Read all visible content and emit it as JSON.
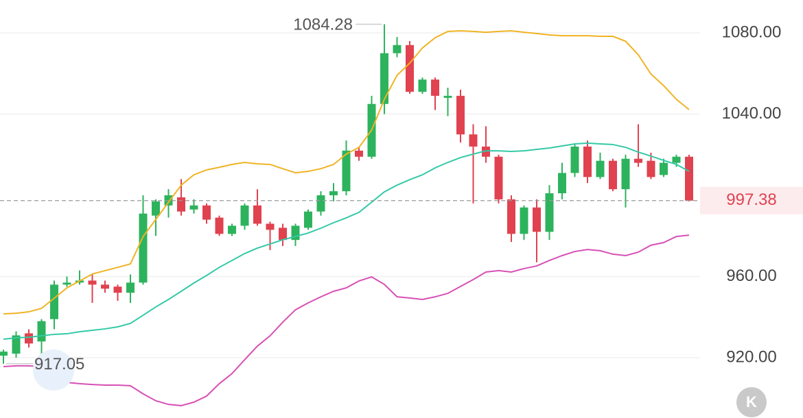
{
  "chart_data": {
    "type": "candlestick",
    "up_color": "#2db35d",
    "down_color": "#e0424f",
    "open": [
      921,
      922,
      932,
      928,
      939,
      956,
      957,
      958,
      956,
      955,
      952,
      957,
      990,
      995,
      999,
      993,
      995,
      989,
      981,
      985,
      995,
      986,
      984,
      978,
      984,
      992,
      1000,
      1002,
      1022,
      1019,
      1045,
      1070,
      1074,
      1051,
      1057,
      1048,
      1049,
      1030,
      1024,
      1019,
      998,
      981,
      994,
      982,
      1001,
      1011,
      1024,
      1009,
      1017,
      1003,
      1018,
      1017,
      1010,
      1016,
      1019
    ],
    "high": [
      924,
      933,
      934,
      939,
      958,
      960,
      963,
      961,
      958,
      956,
      961,
      1000,
      998,
      1003,
      1008,
      998,
      996,
      990,
      986,
      996,
      1003,
      987,
      986,
      986,
      993,
      1002,
      1006,
      1027,
      1024,
      1049,
      1084.28,
      1078,
      1076,
      1058,
      1058,
      1053,
      1052,
      1035,
      1034,
      1020,
      1000,
      995,
      998,
      1005,
      1016,
      1025,
      1027,
      1021,
      1018,
      1020,
      1035,
      1021,
      1018,
      1020,
      1020
    ],
    "low": [
      917.05,
      920,
      925,
      920,
      934,
      955,
      956,
      947,
      952,
      948,
      947,
      956,
      980,
      989,
      990,
      991,
      986,
      980,
      980,
      983,
      985,
      973,
      975,
      975,
      983,
      990,
      997,
      1000,
      1017,
      1018,
      1040,
      1068,
      1050,
      1050,
      1042,
      1039,
      1026,
      996,
      1016,
      996,
      977,
      978,
      967,
      978,
      998,
      1009,
      1006,
      1008,
      1002,
      994,
      1014,
      1008,
      1009,
      1014,
      997
    ],
    "close": [
      923,
      931,
      927,
      938,
      956,
      957,
      958,
      956,
      954,
      952,
      957,
      991,
      997,
      1000,
      992,
      995,
      988,
      981,
      985,
      995,
      986,
      983,
      978,
      985,
      992,
      1000,
      1002,
      1022,
      1019,
      1045,
      1070,
      1074,
      1051,
      1057,
      1049,
      1049,
      1030,
      1024,
      1019,
      998,
      981,
      994,
      982,
      1001,
      1011,
      1024,
      1009,
      1017,
      1003,
      1018,
      1016,
      1009,
      1016,
      1019,
      997.38
    ],
    "lines": [
      {
        "color": "#f0b323",
        "values": [
          941.6,
          941.9,
          942.6,
          944.3,
          949.3,
          954.4,
          957.8,
          961.2,
          962.9,
          964.5,
          966.2,
          979.7,
          988.1,
          996.6,
          1005.0,
          1010.1,
          1012.5,
          1013.8,
          1015.2,
          1016.2,
          1015.5,
          1015.2,
          1013.1,
          1011.1,
          1011.8,
          1013.1,
          1015.2,
          1020.3,
          1023.6,
          1032.1,
          1047.3,
          1059.1,
          1065.1,
          1072.6,
          1077.6,
          1080.7,
          1081.0,
          1080.7,
          1080.3,
          1080.7,
          1081.0,
          1080.3,
          1079.7,
          1079.0,
          1078.6,
          1078.6,
          1078.6,
          1078.3,
          1078.3,
          1075.9,
          1069.2,
          1059.7,
          1054.0,
          1047.3,
          1042.2
        ]
      },
      {
        "color": "#33c9a6",
        "values": [
          929.1,
          929.8,
          930.1,
          930.8,
          931.5,
          931.8,
          932.8,
          933.5,
          934.2,
          935.2,
          936.9,
          940.9,
          945.0,
          948.7,
          952.7,
          956.8,
          960.5,
          964.5,
          967.9,
          971.3,
          974.0,
          976.0,
          978.1,
          979.7,
          981.4,
          983.8,
          986.5,
          988.9,
          991.6,
          996.6,
          1001.7,
          1005.0,
          1007.7,
          1010.1,
          1013.5,
          1016.2,
          1018.6,
          1020.3,
          1021.9,
          1021.9,
          1021.6,
          1021.9,
          1022.6,
          1023.3,
          1024.3,
          1025.3,
          1025.7,
          1025.3,
          1025.0,
          1023.6,
          1021.3,
          1019.3,
          1017.2,
          1015.2,
          1011.8
        ]
      },
      {
        "color": "#d84fb5",
        "values": [
          915.6,
          916.0,
          916.0,
          915.6,
          909.9,
          907.8,
          907.2,
          906.8,
          906.5,
          906.5,
          906.2,
          902.2,
          898.8,
          897.0,
          896.4,
          898.1,
          901.1,
          907.2,
          912.2,
          919.0,
          925.7,
          930.8,
          937.5,
          943.6,
          947.0,
          950.0,
          952.7,
          954.4,
          957.8,
          959.8,
          956.1,
          950.0,
          949.4,
          948.7,
          950.0,
          951.7,
          955.1,
          958.5,
          962.2,
          962.9,
          962.2,
          963.9,
          965.2,
          967.9,
          970.3,
          972.3,
          973.3,
          972.7,
          971.0,
          970.3,
          972.0,
          975.4,
          976.7,
          979.7,
          980.4
        ]
      }
    ],
    "ylim": [
      890.3,
      1096.2
    ],
    "yticks": [
      {
        "value": 920,
        "label": "920.00"
      },
      {
        "value": 960,
        "label": "960.00"
      },
      {
        "value": 1040,
        "label": "1040.00"
      },
      {
        "value": 1080,
        "label": "1080.00"
      }
    ],
    "grid": true,
    "button": "K"
  }
}
